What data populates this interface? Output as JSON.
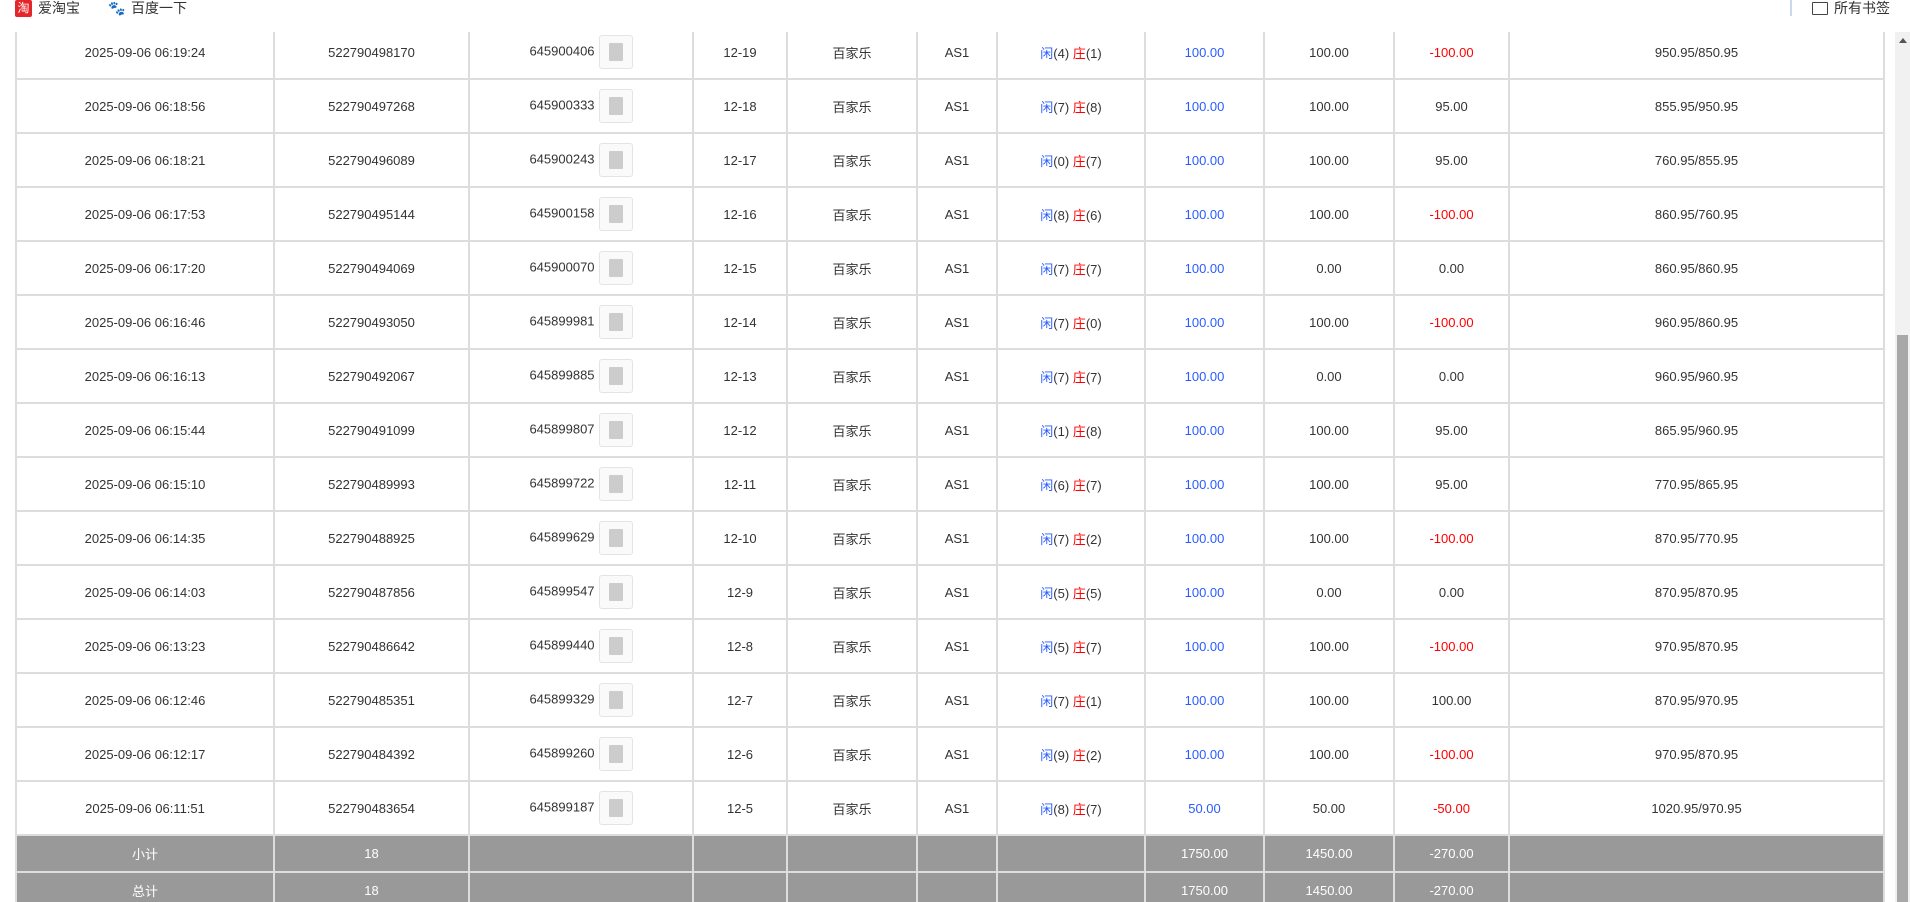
{
  "bookmarks": [
    {
      "label": "爱淘宝",
      "icon": "taobao-icon"
    },
    {
      "label": "百度一下",
      "icon": "baidu-icon"
    }
  ],
  "all_bookmarks": "所有书签",
  "rows": [
    [
      "2025-09-06 06:19:24",
      "522790498170",
      "645900406",
      "12-19",
      "百家乐",
      "AS1",
      "4",
      "1",
      "100.00",
      "100.00",
      "-100.00",
      "950.95/850.95"
    ],
    [
      "2025-09-06 06:18:56",
      "522790497268",
      "645900333",
      "12-18",
      "百家乐",
      "AS1",
      "7",
      "8",
      "100.00",
      "100.00",
      "95.00",
      "855.95/950.95"
    ],
    [
      "2025-09-06 06:18:21",
      "522790496089",
      "645900243",
      "12-17",
      "百家乐",
      "AS1",
      "0",
      "7",
      "100.00",
      "100.00",
      "95.00",
      "760.95/855.95"
    ],
    [
      "2025-09-06 06:17:53",
      "522790495144",
      "645900158",
      "12-16",
      "百家乐",
      "AS1",
      "8",
      "6",
      "100.00",
      "100.00",
      "-100.00",
      "860.95/760.95"
    ],
    [
      "2025-09-06 06:17:20",
      "522790494069",
      "645900070",
      "12-15",
      "百家乐",
      "AS1",
      "7",
      "7",
      "100.00",
      "0.00",
      "0.00",
      "860.95/860.95"
    ],
    [
      "2025-09-06 06:16:46",
      "522790493050",
      "645899981",
      "12-14",
      "百家乐",
      "AS1",
      "7",
      "0",
      "100.00",
      "100.00",
      "-100.00",
      "960.95/860.95"
    ],
    [
      "2025-09-06 06:16:13",
      "522790492067",
      "645899885",
      "12-13",
      "百家乐",
      "AS1",
      "7",
      "7",
      "100.00",
      "0.00",
      "0.00",
      "960.95/960.95"
    ],
    [
      "2025-09-06 06:15:44",
      "522790491099",
      "645899807",
      "12-12",
      "百家乐",
      "AS1",
      "1",
      "8",
      "100.00",
      "100.00",
      "95.00",
      "865.95/960.95"
    ],
    [
      "2025-09-06 06:15:10",
      "522790489993",
      "645899722",
      "12-11",
      "百家乐",
      "AS1",
      "6",
      "7",
      "100.00",
      "100.00",
      "95.00",
      "770.95/865.95"
    ],
    [
      "2025-09-06 06:14:35",
      "522790488925",
      "645899629",
      "12-10",
      "百家乐",
      "AS1",
      "7",
      "2",
      "100.00",
      "100.00",
      "-100.00",
      "870.95/770.95"
    ],
    [
      "2025-09-06 06:14:03",
      "522790487856",
      "645899547",
      "12-9",
      "百家乐",
      "AS1",
      "5",
      "5",
      "100.00",
      "0.00",
      "0.00",
      "870.95/870.95"
    ],
    [
      "2025-09-06 06:13:23",
      "522790486642",
      "645899440",
      "12-8",
      "百家乐",
      "AS1",
      "5",
      "7",
      "100.00",
      "100.00",
      "-100.00",
      "970.95/870.95"
    ],
    [
      "2025-09-06 06:12:46",
      "522790485351",
      "645899329",
      "12-7",
      "百家乐",
      "AS1",
      "7",
      "1",
      "100.00",
      "100.00",
      "100.00",
      "870.95/970.95"
    ],
    [
      "2025-09-06 06:12:17",
      "522790484392",
      "645899260",
      "12-6",
      "百家乐",
      "AS1",
      "9",
      "2",
      "100.00",
      "100.00",
      "-100.00",
      "970.95/870.95"
    ],
    [
      "2025-09-06 06:11:51",
      "522790483654",
      "645899187",
      "12-5",
      "百家乐",
      "AS1",
      "8",
      "7",
      "50.00",
      "50.00",
      "-50.00",
      "1020.95/970.95"
    ]
  ],
  "player_label": "闲",
  "banker_label": "庄",
  "subtotal": {
    "label": "小计",
    "count": "18",
    "bet": "1750.00",
    "valid": "1450.00",
    "win": "-270.00"
  },
  "total": {
    "label": "总计",
    "count": "18",
    "bet": "1750.00",
    "valid": "1450.00",
    "win": "-270.00"
  },
  "colors": {
    "blue": "#2a5cff",
    "red": "#ff0000",
    "summary_bg": "#999999"
  }
}
